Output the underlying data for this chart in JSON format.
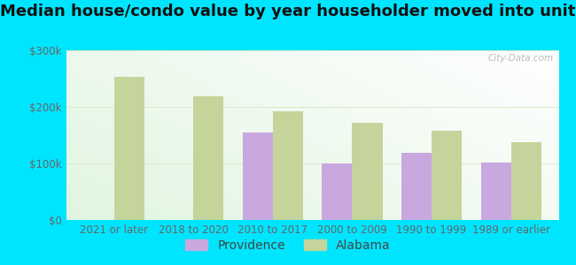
{
  "title": "Median house/condo value by year householder moved into unit",
  "categories": [
    "2021 or later",
    "2018 to 2020",
    "2010 to 2017",
    "2000 to 2009",
    "1990 to 1999",
    "1989 or earlier"
  ],
  "providence_values": [
    0,
    0,
    155000,
    100000,
    118000,
    102000
  ],
  "alabama_values": [
    253000,
    218000,
    192000,
    172000,
    158000,
    138000
  ],
  "providence_color": "#c9a8e0",
  "alabama_color": "#c5d49a",
  "background_outer": "#00e5ff",
  "ylim": [
    0,
    300000
  ],
  "yticks": [
    0,
    100000,
    200000,
    300000
  ],
  "ytick_labels": [
    "$0",
    "$100k",
    "$200k",
    "$300k"
  ],
  "grid_color": "#dde8cc",
  "bar_width": 0.38,
  "legend_labels": [
    "Providence",
    "Alabama"
  ],
  "watermark": "City-Data.com",
  "title_fontsize": 13,
  "tick_fontsize": 8.5,
  "legend_fontsize": 10
}
